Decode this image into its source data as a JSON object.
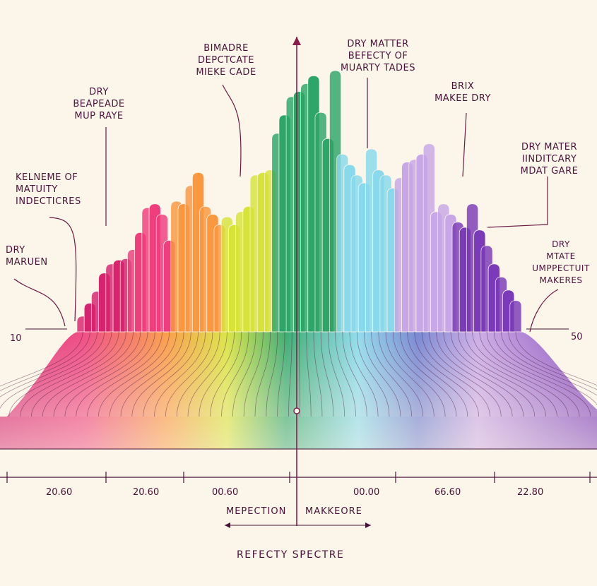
{
  "chart_data": {
    "type": "area",
    "title": "REFECTY SPECTRE",
    "x_markers": {
      "left": "MEPECTION",
      "right": "MAKKEORE"
    },
    "edge_labels": {
      "left": "10",
      "right": "50"
    },
    "tick_labels": [
      "20.60",
      "20.60",
      "00.60",
      "00.00",
      "66.60",
      "22.80"
    ],
    "annotations": [
      {
        "id": "a1",
        "lines": [
          "BIMADRE",
          "DEPCTCATE",
          "MIEKE CADE"
        ]
      },
      {
        "id": "a2",
        "lines": [
          "DRY MATTER",
          "BEFECTY OF",
          "MUARTY TADES"
        ]
      },
      {
        "id": "a3",
        "lines": [
          "DRY",
          "BEAPEADE",
          "MUP RAYE"
        ]
      },
      {
        "id": "a4",
        "lines": [
          "BRIX",
          "MAKEE DRY"
        ]
      },
      {
        "id": "a5",
        "lines": [
          "KELNEME OF",
          "MATUITY",
          "INDECTICRES"
        ]
      },
      {
        "id": "a6",
        "lines": [
          "DRY MATER",
          "IINDITCARY",
          "MDAT GARE"
        ]
      },
      {
        "id": "a7",
        "lines": [
          "DRY",
          "MARUEN"
        ]
      },
      {
        "id": "a8",
        "lines": [
          "DRY",
          "MTATE",
          "UMPPECTUIT",
          "MAKERES"
        ]
      }
    ],
    "series": [
      {
        "color": "#d6246e",
        "values": [
          12,
          22,
          31,
          45,
          52,
          55,
          56
        ]
      },
      {
        "color": "#ee3f7c",
        "values": [
          63,
          76,
          95,
          98,
          90,
          70
        ]
      },
      {
        "color": "#f9983f",
        "values": [
          100,
          98,
          112,
          122,
          96,
          90,
          82
        ]
      },
      {
        "color": "#d8e33a",
        "values": [
          88,
          82,
          92,
          96,
          120,
          122,
          124
        ]
      },
      {
        "color": "#2ea66a",
        "values": [
          152,
          166,
          180,
          184,
          190,
          196,
          168,
          148,
          200
        ]
      },
      {
        "color": "#89d9ec",
        "values": [
          136,
          128,
          120,
          114,
          140,
          124,
          120,
          110
        ]
      },
      {
        "color": "#c9a7e6",
        "values": [
          118,
          130,
          132,
          136,
          144,
          92,
          98,
          90
        ]
      },
      {
        "color": "#7b3ab8",
        "values": [
          84,
          80,
          98,
          78,
          66,
          52,
          42,
          32,
          24
        ]
      }
    ]
  }
}
